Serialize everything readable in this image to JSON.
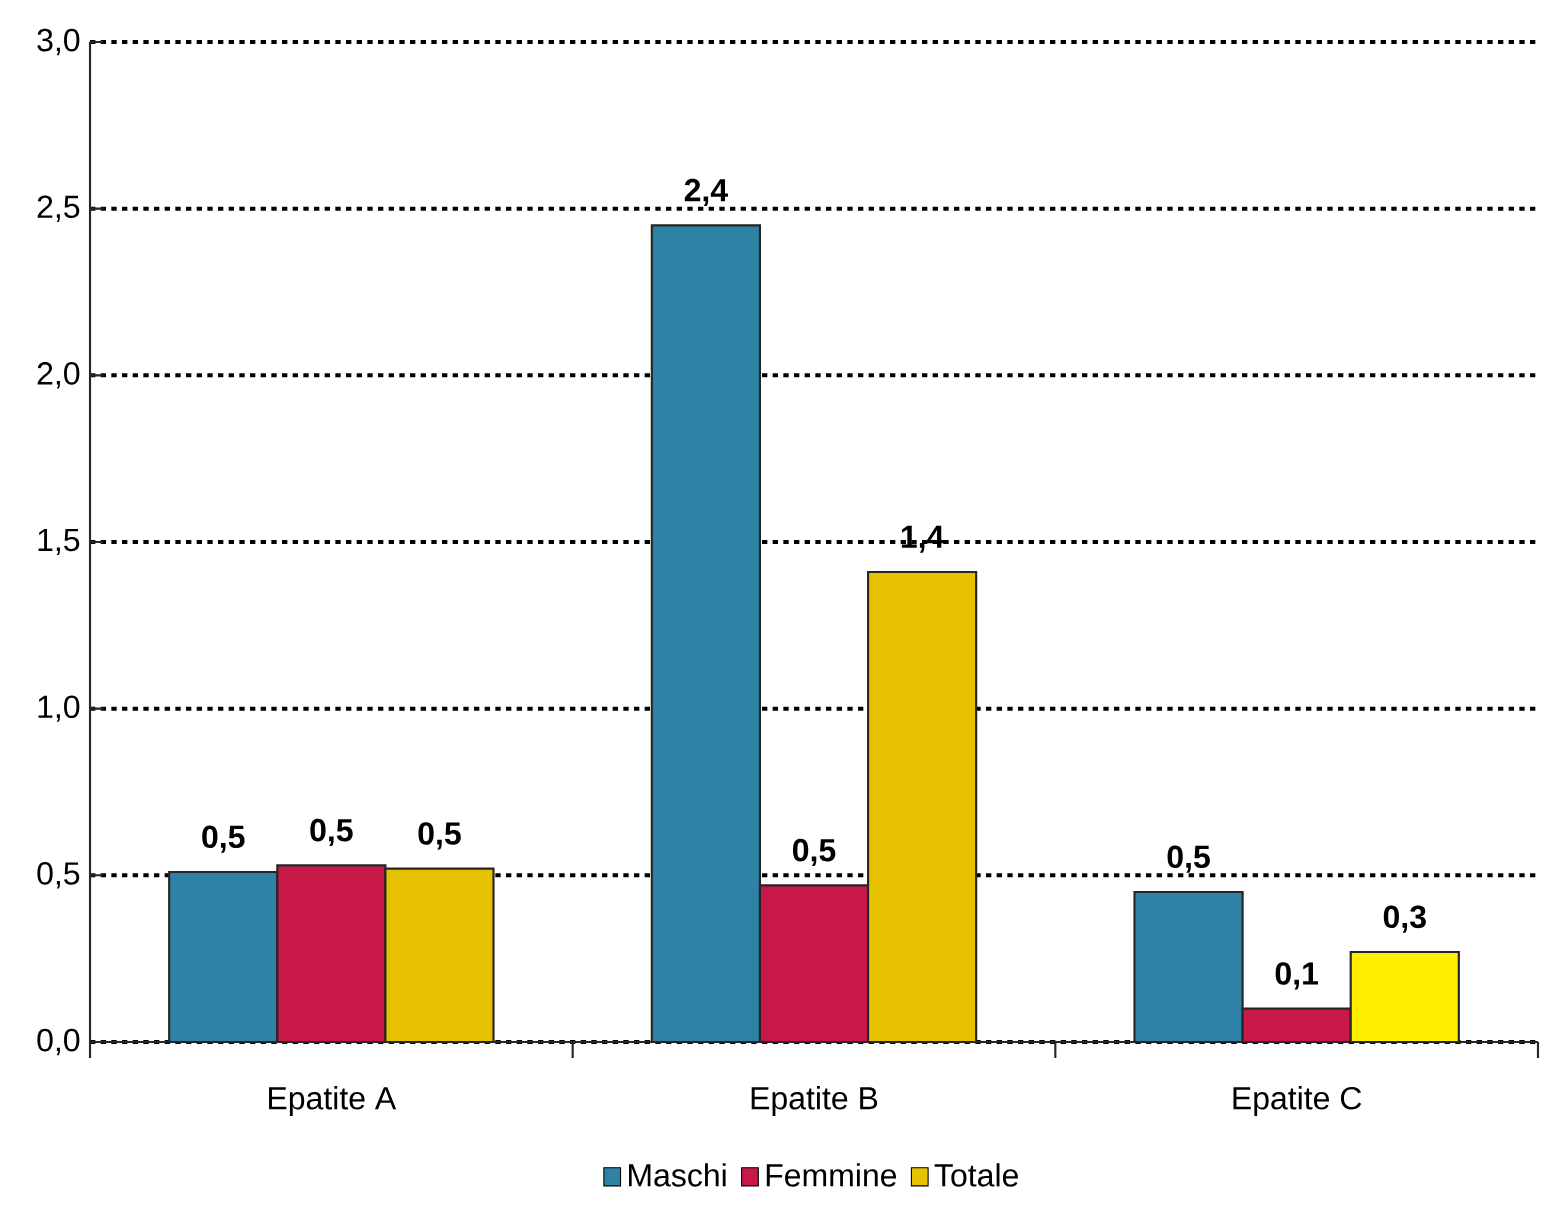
{
  "chart_data": {
    "type": "bar",
    "categories": [
      "Epatite A",
      "Epatite B",
      "Epatite C"
    ],
    "series": [
      {
        "name": "Maschi",
        "color": "#2e82a5",
        "values": [
          0.51,
          2.45,
          0.45
        ],
        "value_labels": [
          "0,5",
          "2,4",
          "0,5"
        ]
      },
      {
        "name": "Femmine",
        "color": "#c8184a",
        "values": [
          0.53,
          0.47,
          0.1
        ],
        "value_labels": [
          "0,5",
          "0,5",
          "0,1"
        ]
      },
      {
        "name": "Totale",
        "color": "#e6c200",
        "colors": [
          "#e6c200",
          "#e6c200",
          "#ffee00"
        ],
        "values": [
          0.52,
          1.41,
          0.27
        ],
        "value_labels": [
          "0,5",
          "1,4",
          "0,3"
        ]
      }
    ],
    "ylim": [
      0,
      3
    ],
    "yticks": [
      {
        "value": 0,
        "label": "0,0"
      },
      {
        "value": 0.5,
        "label": "0,5"
      },
      {
        "value": 1,
        "label": "1,0"
      },
      {
        "value": 1.5,
        "label": "1,5"
      },
      {
        "value": 2,
        "label": "2,0"
      },
      {
        "value": 2.5,
        "label": "2,5"
      },
      {
        "value": 3,
        "label": "3,0"
      }
    ],
    "grid": "y",
    "legend": "bottom"
  }
}
